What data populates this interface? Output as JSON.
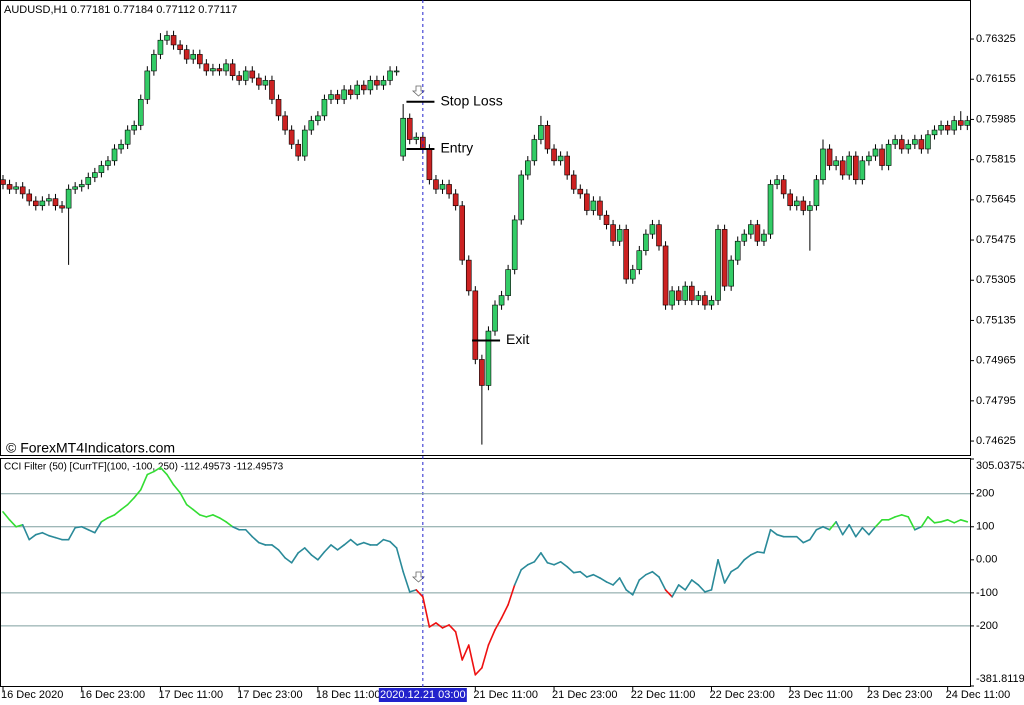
{
  "chart_data": [
    {
      "type": "candlestick",
      "title": "AUDUSD,H1  0.77181 0.77184 0.77112 0.77117",
      "watermark": "© ForexMT4Indicators.com",
      "up_color": "#33cc66",
      "down_color": "#cc2222",
      "wick_color": "#000000",
      "open": [
        0.7573,
        0.7571,
        0.7569,
        0.757,
        0.7567,
        0.7564,
        0.7562,
        0.7564,
        0.7565,
        0.7562,
        0.7561,
        0.7569,
        0.757,
        0.7571,
        0.7574,
        0.7576,
        0.7579,
        0.7581,
        0.7586,
        0.7588,
        0.7594,
        0.7596,
        0.7607,
        0.7619,
        0.7626,
        0.7632,
        0.7634,
        0.763,
        0.7628,
        0.7624,
        0.7626,
        0.7622,
        0.7619,
        0.762,
        0.7619,
        0.7622,
        0.7617,
        0.7615,
        0.7619,
        0.7616,
        0.7613,
        0.7615,
        0.7607,
        0.76,
        0.7594,
        0.7588,
        0.7583,
        0.7594,
        0.7598,
        0.76,
        0.7607,
        0.7609,
        0.7607,
        0.7611,
        0.7609,
        0.7613,
        0.7611,
        0.7615,
        0.7613,
        0.7615,
        0.7619,
        0.7583,
        0.7599,
        0.759,
        0.7591,
        0.7586,
        0.7573,
        0.7569,
        0.7571,
        0.7567,
        0.7562,
        0.7539,
        0.7526,
        0.7497,
        0.7486,
        0.7509,
        0.752,
        0.7524,
        0.7535,
        0.7556,
        0.7575,
        0.7581,
        0.759,
        0.7596,
        0.7586,
        0.7581,
        0.7583,
        0.7575,
        0.7569,
        0.7567,
        0.756,
        0.7564,
        0.7558,
        0.7554,
        0.7547,
        0.7552,
        0.7531,
        0.7535,
        0.7543,
        0.755,
        0.7554,
        0.7545,
        0.752,
        0.7526,
        0.7522,
        0.7528,
        0.7522,
        0.7524,
        0.752,
        0.7522,
        0.7552,
        0.7528,
        0.7539,
        0.7547,
        0.755,
        0.7554,
        0.7547,
        0.755,
        0.7571,
        0.7573,
        0.7567,
        0.7562,
        0.7564,
        0.756,
        0.7562,
        0.7573,
        0.7586,
        0.7579,
        0.7581,
        0.7575,
        0.7583,
        0.7573,
        0.7581,
        0.7583,
        0.7586,
        0.7579,
        0.7588,
        0.759,
        0.7586,
        0.7588,
        0.759,
        0.7586,
        0.7592,
        0.7594,
        0.7596,
        0.7594,
        0.7598,
        0.7596
      ],
      "high": [
        0.7575,
        0.7573,
        0.7572,
        0.7572,
        0.7569,
        0.7566,
        0.7566,
        0.7567,
        0.7567,
        0.7564,
        0.7571,
        0.7572,
        0.7573,
        0.7576,
        0.7578,
        0.7581,
        0.7583,
        0.7588,
        0.759,
        0.7596,
        0.7598,
        0.7609,
        0.7621,
        0.7628,
        0.7635,
        0.7636,
        0.7636,
        0.7632,
        0.763,
        0.7628,
        0.7628,
        0.7624,
        0.7622,
        0.7622,
        0.7624,
        0.7624,
        0.7619,
        0.7621,
        0.7621,
        0.7618,
        0.7617,
        0.7617,
        0.7609,
        0.7602,
        0.7596,
        0.759,
        0.7596,
        0.76,
        0.7602,
        0.7609,
        0.7611,
        0.7611,
        0.7613,
        0.7613,
        0.7615,
        0.7615,
        0.7617,
        0.7617,
        0.7617,
        0.7621,
        0.7621,
        0.7605,
        0.7601,
        0.7593,
        0.7593,
        0.7588,
        0.7575,
        0.7573,
        0.7573,
        0.7569,
        0.7564,
        0.7541,
        0.7528,
        0.7499,
        0.7511,
        0.7522,
        0.7526,
        0.7537,
        0.7558,
        0.7577,
        0.7583,
        0.7592,
        0.76,
        0.7598,
        0.7588,
        0.7585,
        0.7585,
        0.7577,
        0.7571,
        0.7569,
        0.7566,
        0.7566,
        0.756,
        0.7556,
        0.7554,
        0.7554,
        0.7537,
        0.7545,
        0.7552,
        0.7556,
        0.7556,
        0.7547,
        0.7528,
        0.7528,
        0.753,
        0.753,
        0.7526,
        0.7526,
        0.7524,
        0.7554,
        0.7554,
        0.7541,
        0.7549,
        0.7552,
        0.7556,
        0.7556,
        0.7552,
        0.7573,
        0.7575,
        0.7575,
        0.7569,
        0.7566,
        0.7566,
        0.7564,
        0.7575,
        0.759,
        0.7588,
        0.7583,
        0.7583,
        0.7585,
        0.7585,
        0.7583,
        0.7585,
        0.7588,
        0.7588,
        0.759,
        0.7592,
        0.7592,
        0.759,
        0.7592,
        0.7592,
        0.7594,
        0.7596,
        0.7598,
        0.7598,
        0.76,
        0.7602,
        0.76
      ],
      "low": [
        0.7569,
        0.7567,
        0.7567,
        0.7565,
        0.7562,
        0.756,
        0.756,
        0.7562,
        0.756,
        0.7559,
        0.7537,
        0.7567,
        0.7568,
        0.7569,
        0.7572,
        0.7574,
        0.7577,
        0.7579,
        0.7584,
        0.7586,
        0.7592,
        0.7594,
        0.7605,
        0.7617,
        0.7624,
        0.763,
        0.7628,
        0.7626,
        0.7622,
        0.7622,
        0.762,
        0.7617,
        0.7617,
        0.7617,
        0.7617,
        0.7615,
        0.7613,
        0.7613,
        0.7614,
        0.7611,
        0.7611,
        0.7605,
        0.7598,
        0.7592,
        0.7586,
        0.7581,
        0.7581,
        0.7592,
        0.7596,
        0.7598,
        0.7605,
        0.7605,
        0.7605,
        0.7607,
        0.7607,
        0.7609,
        0.7609,
        0.7611,
        0.7611,
        0.7613,
        0.7617,
        0.7581,
        0.7588,
        0.7588,
        0.7584,
        0.7571,
        0.7567,
        0.7567,
        0.7565,
        0.756,
        0.7537,
        0.7524,
        0.7495,
        0.7461,
        0.7484,
        0.7507,
        0.7518,
        0.7522,
        0.7533,
        0.7554,
        0.7573,
        0.7579,
        0.7588,
        0.7584,
        0.7579,
        0.7579,
        0.7573,
        0.7567,
        0.7565,
        0.7558,
        0.7558,
        0.7556,
        0.7552,
        0.7545,
        0.7545,
        0.7529,
        0.7529,
        0.7533,
        0.7541,
        0.7548,
        0.7543,
        0.7518,
        0.7518,
        0.752,
        0.752,
        0.752,
        0.752,
        0.7518,
        0.7518,
        0.752,
        0.7526,
        0.7526,
        0.7537,
        0.7545,
        0.7548,
        0.7545,
        0.7545,
        0.7548,
        0.7569,
        0.7565,
        0.756,
        0.756,
        0.7558,
        0.7543,
        0.756,
        0.7571,
        0.7577,
        0.7577,
        0.7573,
        0.7573,
        0.7571,
        0.7571,
        0.7579,
        0.7581,
        0.7577,
        0.7577,
        0.7586,
        0.7584,
        0.7584,
        0.7586,
        0.7584,
        0.7584,
        0.759,
        0.7592,
        0.7592,
        0.7592,
        0.7594,
        0.7594
      ],
      "close": [
        0.7571,
        0.7569,
        0.757,
        0.7567,
        0.7564,
        0.7562,
        0.7564,
        0.7565,
        0.7562,
        0.7561,
        0.7569,
        0.757,
        0.7571,
        0.7574,
        0.7576,
        0.7579,
        0.7581,
        0.7586,
        0.7588,
        0.7594,
        0.7596,
        0.7607,
        0.7619,
        0.7626,
        0.7632,
        0.7634,
        0.763,
        0.7628,
        0.7624,
        0.7626,
        0.7622,
        0.7619,
        0.762,
        0.7619,
        0.7622,
        0.7617,
        0.7615,
        0.7619,
        0.7616,
        0.7613,
        0.7615,
        0.7607,
        0.76,
        0.7594,
        0.7588,
        0.7583,
        0.7594,
        0.7598,
        0.76,
        0.7607,
        0.7609,
        0.7607,
        0.7611,
        0.7609,
        0.7613,
        0.7611,
        0.7615,
        0.7613,
        0.7615,
        0.7619,
        0.7619,
        0.7599,
        0.759,
        0.7591,
        0.7586,
        0.7573,
        0.7569,
        0.7571,
        0.7567,
        0.7562,
        0.7539,
        0.7526,
        0.7497,
        0.7486,
        0.7509,
        0.752,
        0.7524,
        0.7535,
        0.7556,
        0.7575,
        0.7581,
        0.759,
        0.7596,
        0.7586,
        0.7581,
        0.7583,
        0.7575,
        0.7569,
        0.7567,
        0.756,
        0.7564,
        0.7558,
        0.7554,
        0.7547,
        0.7552,
        0.7531,
        0.7535,
        0.7543,
        0.755,
        0.7554,
        0.7545,
        0.752,
        0.7526,
        0.7522,
        0.7528,
        0.7522,
        0.7524,
        0.752,
        0.7522,
        0.7552,
        0.7528,
        0.7539,
        0.7547,
        0.755,
        0.7554,
        0.7547,
        0.755,
        0.7571,
        0.7573,
        0.7567,
        0.7562,
        0.7564,
        0.756,
        0.7562,
        0.7573,
        0.7586,
        0.7579,
        0.7581,
        0.7575,
        0.7583,
        0.7573,
        0.7581,
        0.7583,
        0.7586,
        0.7579,
        0.7588,
        0.759,
        0.7586,
        0.7588,
        0.759,
        0.7586,
        0.7592,
        0.7594,
        0.7596,
        0.7594,
        0.7598,
        0.7596,
        0.7598
      ],
      "ylim": [
        0.74566,
        0.7649
      ],
      "yticks": [
        0.76325,
        0.76155,
        0.75985,
        0.75815,
        0.75645,
        0.75475,
        0.75305,
        0.75135,
        0.74965,
        0.74795,
        0.74625
      ],
      "xticks": [
        {
          "value": 0,
          "label": "16 Dec 2020"
        },
        {
          "value": 12,
          "label": "16 Dec 23:00"
        },
        {
          "value": 24,
          "label": "17 Dec 11:00"
        },
        {
          "value": 36,
          "label": "17 Dec 23:00"
        },
        {
          "value": 48,
          "label": "18 Dec 11:00"
        },
        {
          "value": 72,
          "label": "21 Dec 11:00"
        },
        {
          "value": 84,
          "label": "21 Dec 23:00"
        },
        {
          "value": 96,
          "label": "22 Dec 11:00"
        },
        {
          "value": 108,
          "label": "22 Dec 23:00"
        },
        {
          "value": 120,
          "label": "23 Dec 11:00"
        },
        {
          "value": 132,
          "label": "23 Dec 23:00"
        },
        {
          "value": 144,
          "label": "24 Dec 11:00"
        }
      ],
      "crosshair": {
        "x": 64,
        "label": "2020.12.21 03:00",
        "color": "#2222cc"
      },
      "annotations": [
        {
          "text": "Stop Loss",
          "x": 61.5,
          "value": 0.7606
        },
        {
          "text": "Entry",
          "x": 61.5,
          "value": 0.7586
        },
        {
          "text": "Exit",
          "x": 71.5,
          "value": 0.7505
        }
      ]
    },
    {
      "type": "line",
      "title": "CCI Filter (50) [CurrTF](100, -100, 250) -112.49573 -112.49573",
      "values": [
        145,
        121,
        100,
        106,
        61,
        76,
        82,
        73,
        67,
        61,
        61,
        97,
        100,
        91,
        82,
        115,
        127,
        136,
        152,
        167,
        188,
        212,
        258,
        267,
        279,
        258,
        227,
        203,
        167,
        152,
        136,
        130,
        136,
        127,
        115,
        100,
        91,
        91,
        70,
        52,
        45,
        45,
        30,
        6,
        -9,
        21,
        36,
        15,
        0,
        24,
        45,
        30,
        45,
        61,
        45,
        52,
        45,
        45,
        61,
        55,
        36,
        -36,
        -97,
        -91,
        -112,
        -203,
        -191,
        -206,
        -197,
        -218,
        -303,
        -258,
        -348,
        -327,
        -258,
        -212,
        -176,
        -136,
        -76,
        -30,
        -15,
        -6,
        21,
        -9,
        -15,
        -6,
        -21,
        -39,
        -36,
        -52,
        -45,
        -55,
        -67,
        -76,
        -55,
        -91,
        -106,
        -61,
        -45,
        -36,
        -52,
        -91,
        -112,
        -76,
        -91,
        -61,
        -76,
        -97,
        -91,
        0,
        -70,
        -36,
        -24,
        0,
        15,
        24,
        21,
        91,
        76,
        70,
        70,
        70,
        52,
        61,
        91,
        100,
        91,
        115,
        76,
        106,
        70,
        97,
        76,
        100,
        121,
        121,
        130,
        136,
        130,
        91,
        100,
        130,
        112,
        115,
        121,
        112,
        121,
        115
      ],
      "ylim": [
        -381.81193,
        305.03753
      ],
      "yticks": [
        305.03753,
        200,
        100,
        {
          "value": 0,
          "label": "0.00"
        },
        -100,
        -200,
        -381.81193
      ],
      "levels": [
        200,
        100,
        -100,
        -200
      ],
      "level_color": "#7f9f9f",
      "color_levels": [
        100,
        -100
      ],
      "colors": {
        "above": "#33dd33",
        "between": "#2a8a99",
        "below": "#ee1111"
      }
    }
  ]
}
